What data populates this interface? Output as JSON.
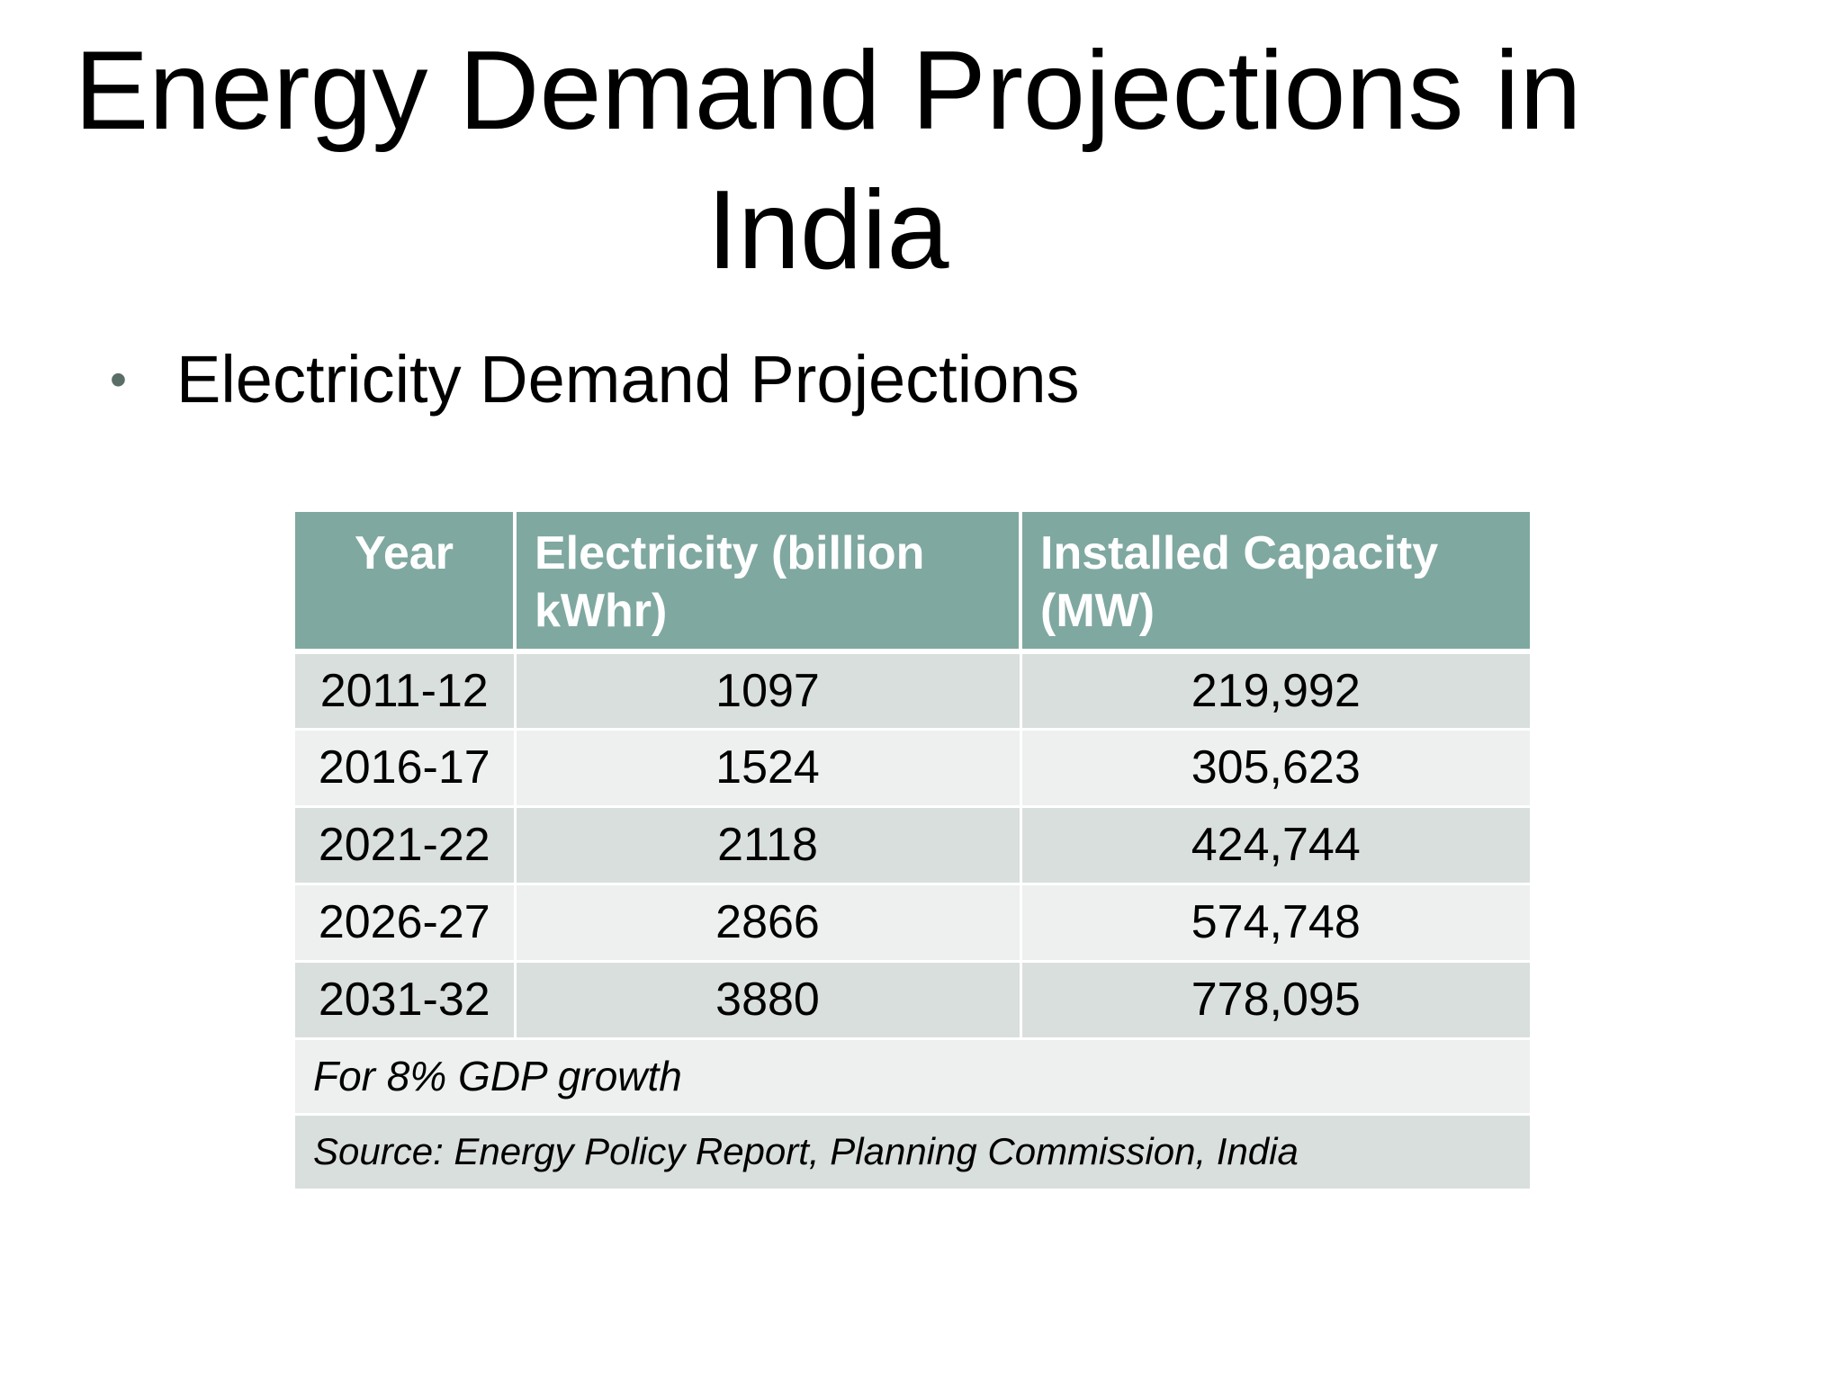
{
  "slide": {
    "title": "Energy Demand Projections in India",
    "bullet": "Electricity Demand Projections"
  },
  "table": {
    "headers": [
      "Year",
      "Electricity (billion kWhr)",
      "Installed Capacity (MW)"
    ],
    "rows": [
      [
        "2011-12",
        "1097",
        "219,992"
      ],
      [
        "2016-17",
        "1524",
        "305,623"
      ],
      [
        "2021-22",
        "2118",
        "424,744"
      ],
      [
        "2026-27",
        "2866",
        "574,748"
      ],
      [
        "2031-32",
        "3880",
        "778,095"
      ]
    ],
    "note": "For 8% GDP growth",
    "source": "Source: Energy Policy Report, Planning Commission, India"
  },
  "colors": {
    "header_bg": "#7fa8a0",
    "row_dark": "#d9dfdd",
    "row_light": "#edf0ef",
    "bullet": "#5a6e68"
  }
}
